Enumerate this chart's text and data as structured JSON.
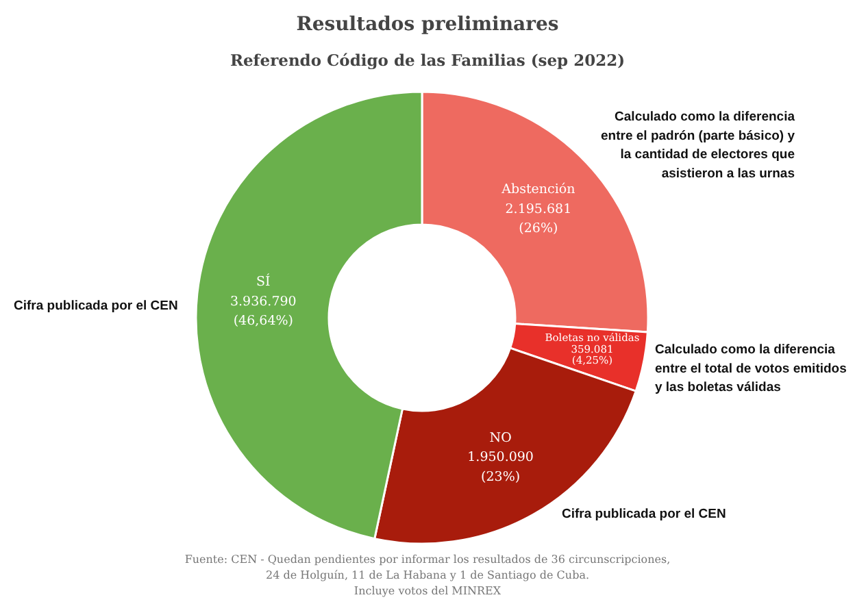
{
  "chart_data": {
    "type": "donut",
    "title": "Resultados preliminares",
    "subtitle": "Referendo Código de las Familias (sep 2022)",
    "categories": [
      "Abstención",
      "Boletas no válidas",
      "NO",
      "SÍ"
    ],
    "values": [
      2195681,
      359081,
      1950090,
      3936790
    ],
    "value_labels": [
      "2.195.681\n(26%)",
      "359.081\n(4,25%)",
      "1.950.090\n(23%)",
      "3.936.790\n(46,64%)"
    ],
    "colors": [
      "#ee6a60",
      "#e8302a",
      "#a81c0c",
      "#6ab04c"
    ],
    "annotations": [
      "Calculado como la diferencia\nentre el padrón (parte básico) y\nla cantidad de electores que\nasistieron a las urnas",
      "Calculado como la diferencia\nentre el total de votos emitidos\ny las boletas válidas",
      "Cifra publicada por el CEN",
      "Cifra publicada por el CEN",
      "Fuente: CEN - Quedan pendientes por informar los resultados de 36 circunscripciones,\n24 de Holguín, 11 de La Habana y 1 de Santiago de Cuba.\nIncluye votos del MINREX"
    ]
  }
}
